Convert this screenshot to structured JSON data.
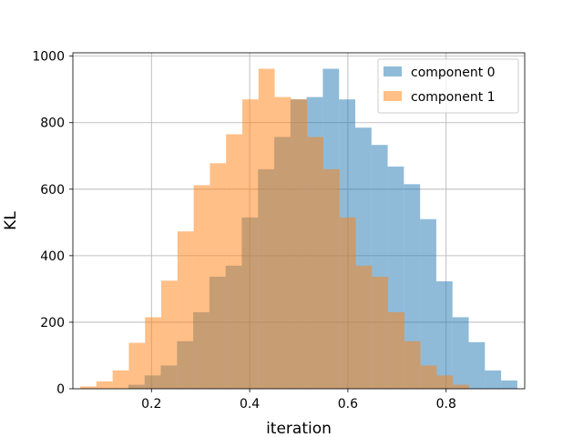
{
  "chart_data": {
    "type": "bar",
    "subtype": "overlapping-histogram",
    "title": "",
    "xlabel": "iteration",
    "ylabel": "KL",
    "xlim": [
      0.04,
      0.96
    ],
    "ylim": [
      0,
      1010
    ],
    "xticks": [
      0.2,
      0.4,
      0.6,
      0.8
    ],
    "xtick_labels": [
      "0.2",
      "0.4",
      "0.6",
      "0.8"
    ],
    "yticks": [
      0,
      200,
      400,
      600,
      800,
      1000
    ],
    "ytick_labels": [
      "0",
      "200",
      "400",
      "600",
      "800",
      "1000"
    ],
    "grid": true,
    "legend_position": "top-right",
    "series": [
      {
        "name": "component 0",
        "color": "#1f77b4",
        "opacity": 0.5,
        "bin_edges": [
          0.153,
          0.186,
          0.219,
          0.252,
          0.285,
          0.318,
          0.351,
          0.384,
          0.417,
          0.45,
          0.483,
          0.516,
          0.549,
          0.582,
          0.615,
          0.648,
          0.681,
          0.714,
          0.747,
          0.78,
          0.813,
          0.846,
          0.879,
          0.912,
          0.945
        ],
        "counts": [
          12,
          40,
          70,
          143,
          230,
          337,
          370,
          515,
          660,
          757,
          870,
          877,
          962,
          870,
          785,
          733,
          668,
          615,
          510,
          323,
          215,
          140,
          55,
          25
        ]
      },
      {
        "name": "component 1",
        "color": "#ff7f0e",
        "opacity": 0.5,
        "bin_edges": [
          0.055,
          0.088,
          0.121,
          0.154,
          0.187,
          0.22,
          0.253,
          0.286,
          0.319,
          0.352,
          0.385,
          0.418,
          0.451,
          0.484,
          0.517,
          0.55,
          0.583,
          0.616,
          0.649,
          0.682,
          0.715,
          0.748,
          0.781,
          0.814,
          0.847
        ],
        "counts": [
          7,
          22,
          55,
          138,
          215,
          325,
          473,
          612,
          678,
          765,
          870,
          962,
          877,
          870,
          757,
          660,
          515,
          370,
          337,
          230,
          143,
          70,
          40,
          12
        ]
      }
    ]
  }
}
